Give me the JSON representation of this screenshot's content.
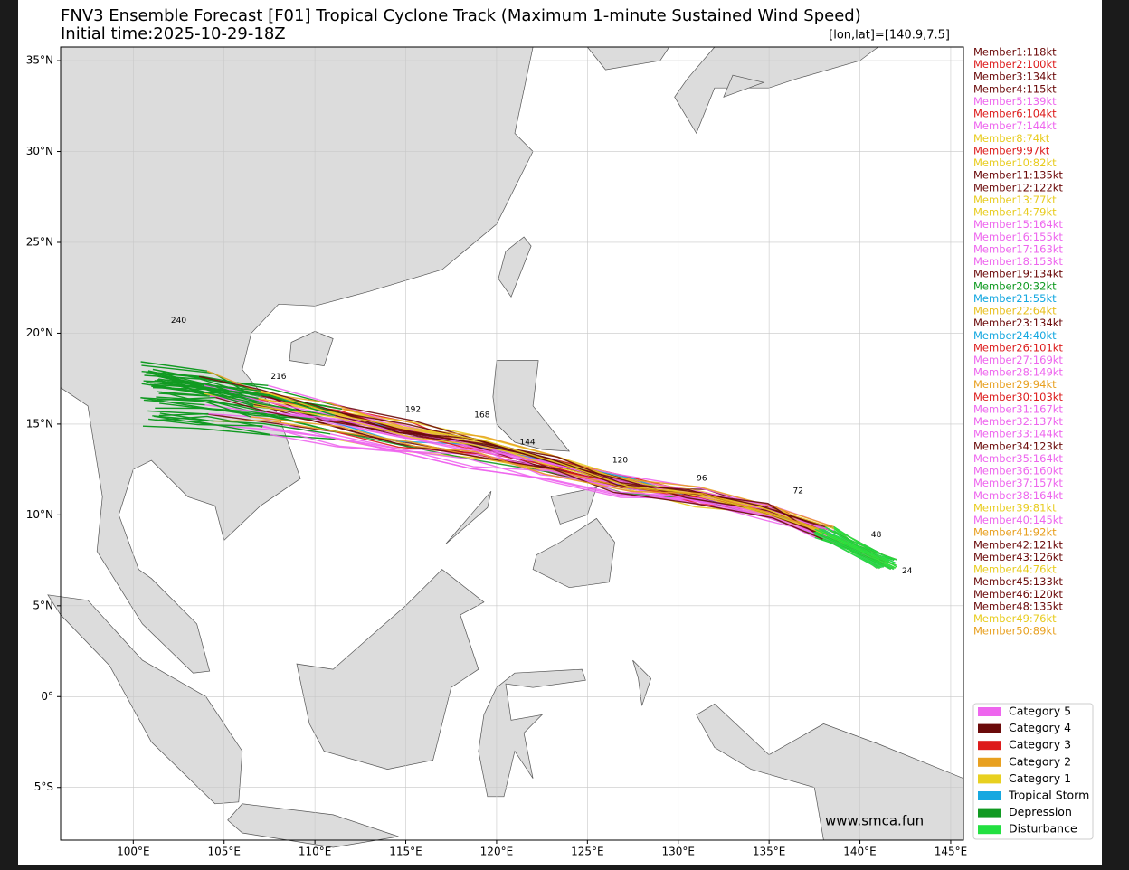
{
  "title": "FNV3 Ensemble Forecast [F01] Tropical Cyclone Track (Maximum 1-minute Sustained Wind Speed)",
  "subtitle": "Initial time:2025-10-29-18Z",
  "position_label": "[lon,lat]=[140.9,7.5]",
  "watermark": "www.smca.fun",
  "map": {
    "xlim": [
      96,
      145.7
    ],
    "ylim": [
      -7.9,
      35.75
    ],
    "xticks": [
      {
        "value": 100,
        "label": "100°E"
      },
      {
        "value": 105,
        "label": "105°E"
      },
      {
        "value": 110,
        "label": "110°E"
      },
      {
        "value": 115,
        "label": "115°E"
      },
      {
        "value": 120,
        "label": "120°E"
      },
      {
        "value": 125,
        "label": "125°E"
      },
      {
        "value": 130,
        "label": "130°E"
      },
      {
        "value": 135,
        "label": "135°E"
      },
      {
        "value": 140,
        "label": "140°E"
      },
      {
        "value": 145,
        "label": "145°E"
      }
    ],
    "yticks": [
      {
        "value": -5,
        "label": "5°S"
      },
      {
        "value": 0,
        "label": "0°"
      },
      {
        "value": 5,
        "label": "5°N"
      },
      {
        "value": 10,
        "label": "10°N"
      },
      {
        "value": 15,
        "label": "15°N"
      },
      {
        "value": 20,
        "label": "20°N"
      },
      {
        "value": 25,
        "label": "25°N"
      },
      {
        "value": 30,
        "label": "30°N"
      },
      {
        "value": 35,
        "label": "35°N"
      }
    ],
    "grid": true
  },
  "members": [
    {
      "label": "Member1:118kt",
      "color": "#6b0a0a"
    },
    {
      "label": "Member2:100kt",
      "color": "#dd1c1c"
    },
    {
      "label": "Member3:134kt",
      "color": "#6b0a0a"
    },
    {
      "label": "Member4:115kt",
      "color": "#6b0a0a"
    },
    {
      "label": "Member5:139kt",
      "color": "#ee66ee"
    },
    {
      "label": "Member6:104kt",
      "color": "#dd1c1c"
    },
    {
      "label": "Member7:144kt",
      "color": "#ee66ee"
    },
    {
      "label": "Member8:74kt",
      "color": "#e8cc20"
    },
    {
      "label": "Member9:97kt",
      "color": "#dd1c1c"
    },
    {
      "label": "Member10:82kt",
      "color": "#e8cc20"
    },
    {
      "label": "Member11:135kt",
      "color": "#6b0a0a"
    },
    {
      "label": "Member12:122kt",
      "color": "#6b0a0a"
    },
    {
      "label": "Member13:77kt",
      "color": "#e8cc20"
    },
    {
      "label": "Member14:79kt",
      "color": "#e8cc20"
    },
    {
      "label": "Member15:164kt",
      "color": "#ee66ee"
    },
    {
      "label": "Member16:155kt",
      "color": "#ee66ee"
    },
    {
      "label": "Member17:163kt",
      "color": "#ee66ee"
    },
    {
      "label": "Member18:153kt",
      "color": "#ee66ee"
    },
    {
      "label": "Member19:134kt",
      "color": "#6b0a0a"
    },
    {
      "label": "Member20:32kt",
      "color": "#119a22"
    },
    {
      "label": "Member21:55kt",
      "color": "#16a8e0"
    },
    {
      "label": "Member22:64kt",
      "color": "#e8c020"
    },
    {
      "label": "Member23:134kt",
      "color": "#6b0a0a"
    },
    {
      "label": "Member24:40kt",
      "color": "#16a8e0"
    },
    {
      "label": "Member26:101kt",
      "color": "#dd1c1c"
    },
    {
      "label": "Member27:169kt",
      "color": "#ee66ee"
    },
    {
      "label": "Member28:149kt",
      "color": "#ee66ee"
    },
    {
      "label": "Member29:94kt",
      "color": "#e8a020"
    },
    {
      "label": "Member30:103kt",
      "color": "#dd1c1c"
    },
    {
      "label": "Member31:167kt",
      "color": "#ee66ee"
    },
    {
      "label": "Member32:137kt",
      "color": "#ee66ee"
    },
    {
      "label": "Member33:144kt",
      "color": "#ee66ee"
    },
    {
      "label": "Member34:123kt",
      "color": "#6b0a0a"
    },
    {
      "label": "Member35:164kt",
      "color": "#ee66ee"
    },
    {
      "label": "Member36:160kt",
      "color": "#ee66ee"
    },
    {
      "label": "Member37:157kt",
      "color": "#ee66ee"
    },
    {
      "label": "Member38:164kt",
      "color": "#ee66ee"
    },
    {
      "label": "Member39:81kt",
      "color": "#e8cc20"
    },
    {
      "label": "Member40:145kt",
      "color": "#ee66ee"
    },
    {
      "label": "Member41:92kt",
      "color": "#e8a020"
    },
    {
      "label": "Member42:121kt",
      "color": "#6b0a0a"
    },
    {
      "label": "Member43:126kt",
      "color": "#6b0a0a"
    },
    {
      "label": "Member44:76kt",
      "color": "#e8cc20"
    },
    {
      "label": "Member45:133kt",
      "color": "#6b0a0a"
    },
    {
      "label": "Member46:120kt",
      "color": "#6b0a0a"
    },
    {
      "label": "Member48:135kt",
      "color": "#6b0a0a"
    },
    {
      "label": "Member49:76kt",
      "color": "#e8cc20"
    },
    {
      "label": "Member50:89kt",
      "color": "#e8a020"
    }
  ],
  "legend": [
    {
      "label": "Category 5",
      "color": "#ee66ee"
    },
    {
      "label": "Category 4",
      "color": "#6b0a0a"
    },
    {
      "label": "Category 3",
      "color": "#dd1c1c"
    },
    {
      "label": "Category 2",
      "color": "#e8a020"
    },
    {
      "label": "Category 1",
      "color": "#e8d020"
    },
    {
      "label": "Tropical Storm",
      "color": "#16a8e0"
    },
    {
      "label": "Depression",
      "color": "#119a22"
    },
    {
      "label": "Disturbance",
      "color": "#22e040"
    }
  ],
  "track_labels": [
    {
      "label": "24",
      "lon": 142.6,
      "lat": 6.9
    },
    {
      "label": "48",
      "lon": 140.9,
      "lat": 8.9
    },
    {
      "label": "72",
      "lon": 136.6,
      "lat": 11.3
    },
    {
      "label": "96",
      "lon": 131.3,
      "lat": 12.0
    },
    {
      "label": "120",
      "lon": 126.8,
      "lat": 13.0
    },
    {
      "label": "144",
      "lon": 121.7,
      "lat": 14.0
    },
    {
      "label": "168",
      "lon": 119.2,
      "lat": 15.5
    },
    {
      "label": "192",
      "lon": 115.4,
      "lat": 15.8
    },
    {
      "label": "216",
      "lon": 108.0,
      "lat": 17.6
    },
    {
      "label": "240",
      "lon": 102.5,
      "lat": 20.7
    }
  ]
}
